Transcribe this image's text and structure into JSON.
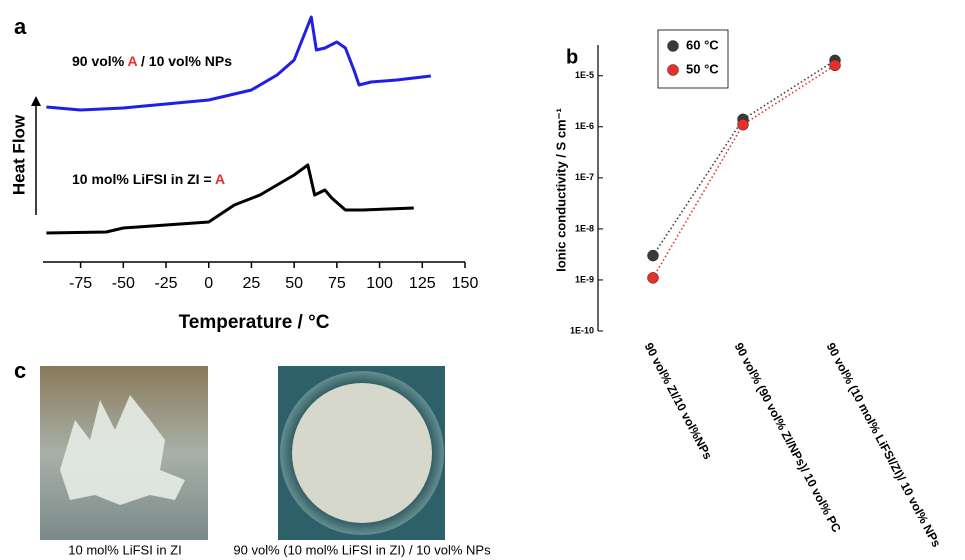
{
  "chart_data": [
    {
      "type": "line",
      "panel_label": "a",
      "xlabel": "Temperature / °C",
      "ylabel": "Heat Flow",
      "xlim": [
        -97,
        150
      ],
      "xticks": [
        -75,
        -50,
        -25,
        0,
        25,
        50,
        75,
        100,
        125,
        150
      ],
      "ylim": [
        0,
        23.5
      ],
      "annotations": [
        [
          "90 vol% ",
          "A",
          " / 10 vol% NPs"
        ],
        [
          "10 mol% LiFSI in ZI = ",
          "A"
        ]
      ],
      "series": [
        {
          "color": "#1f1fe6",
          "x": [
            -95,
            -75,
            -50,
            -25,
            0,
            25,
            40,
            50,
            57,
            60,
            63,
            68,
            75,
            80,
            85,
            88,
            95,
            110,
            130
          ],
          "values": [
            14.3,
            14.0,
            14.2,
            14.6,
            15.0,
            16.0,
            17.5,
            19.0,
            22.0,
            23.3,
            20.0,
            20.2,
            20.8,
            20.2,
            18.0,
            16.5,
            16.8,
            17.0,
            17.4
          ]
        },
        {
          "color": "#000000",
          "x": [
            -95,
            -60,
            -50,
            -25,
            0,
            15,
            30,
            50,
            58,
            62,
            68,
            72,
            80,
            90,
            120
          ],
          "values": [
            1.7,
            1.8,
            2.2,
            2.5,
            2.8,
            4.5,
            5.5,
            7.5,
            8.5,
            5.5,
            6.0,
            5.2,
            4.0,
            4.0,
            4.2
          ]
        }
      ]
    },
    {
      "type": "scatter",
      "panel_label": "b",
      "log_y": true,
      "ylabel": "Ionic conductivity / S cm⁻¹",
      "categories": [
        "90 vol% ZI/10 vol%NPs",
        "90 vol% (90 vol% ZI/NPs)/ 10 vol% PC",
        "90 vol% (10 mol% LiFSI/ZI)/ 10 vol% NPs"
      ],
      "ylim": [
        1e-10,
        4e-05
      ],
      "yticks": [
        {
          "value": 1e-10,
          "label": "1E-10"
        },
        {
          "value": 1e-09,
          "label": "1E-9"
        },
        {
          "value": 1e-08,
          "label": "1E-8"
        },
        {
          "value": 1e-07,
          "label": "1E-7"
        },
        {
          "value": 1e-06,
          "label": "1E-6"
        },
        {
          "value": 1e-05,
          "label": "1E-5"
        }
      ],
      "series": [
        {
          "name": "60 °C",
          "color": "#3a3a3a",
          "values": [
            3e-09,
            1.4e-06,
            2e-05
          ]
        },
        {
          "name": "50 °C",
          "color": "#e8302a",
          "values": [
            1.1e-09,
            1.1e-06,
            1.6e-05
          ]
        }
      ]
    }
  ],
  "photos": {
    "panel_label": "c",
    "captions": [
      "10 mol% LiFSI in ZI",
      "90 vol% (10 mol% LiFSI in ZI) / 10 vol% NPs"
    ]
  }
}
